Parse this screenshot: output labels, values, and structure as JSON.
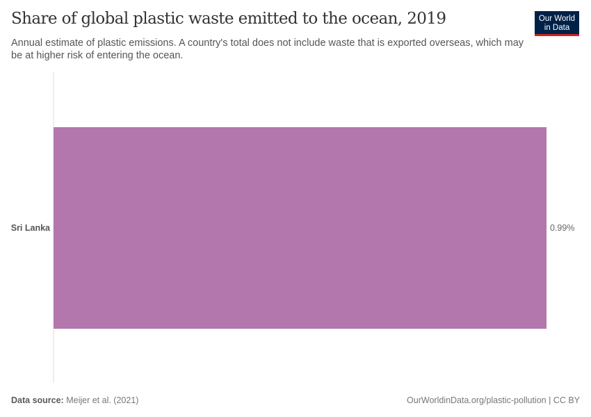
{
  "header": {
    "title": "Share of global plastic waste emitted to the ocean, 2019",
    "subtitle": "Annual estimate of plastic emissions. A country's total does not include waste that is exported overseas, which may be at higher risk of entering the ocean.",
    "logo_line1": "Our World",
    "logo_line2": "in Data"
  },
  "footer": {
    "source_label": "Data source:",
    "source": "Meijer et al. (2021)",
    "url": "OurWorldinData.org/plastic-pollution | CC BY"
  },
  "chart_data": {
    "type": "bar",
    "orientation": "horizontal",
    "title": "Share of global plastic waste emitted to the ocean, 2019",
    "categories": [
      "Sri Lanka"
    ],
    "values": [
      0.99
    ],
    "value_labels": [
      "0.99%"
    ],
    "unit": "%",
    "xlim": [
      0,
      0.99
    ],
    "grid": false,
    "colors": {
      "bar": "#b377ae"
    }
  }
}
